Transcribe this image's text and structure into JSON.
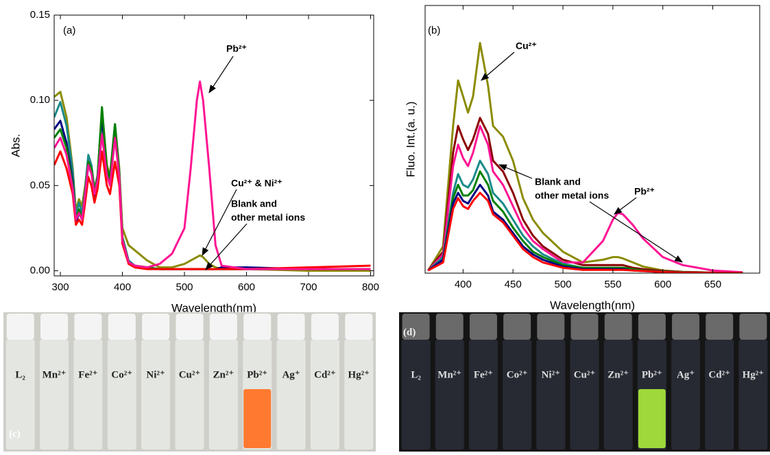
{
  "chart_data": [
    {
      "type": "line",
      "x_label": "Wavelength(nm)",
      "y_label": "Abs.",
      "annotations": [
        "(a)",
        "Pb²⁺",
        "Cu²⁺ & Ni²⁺",
        "Blank and",
        "other metal ions"
      ],
      "xlim": [
        290,
        805
      ],
      "ylim": [
        -0.003,
        0.15
      ],
      "xticks": [
        300,
        400,
        500,
        600,
        700,
        800
      ],
      "yticks": [
        {
          "value": 0,
          "label": "0.00"
        },
        0.05,
        {
          "value": 0.1,
          "label": "0.10"
        },
        0.15
      ],
      "x": [
        290,
        300,
        310,
        320,
        325,
        330,
        335,
        340,
        345,
        350,
        355,
        360,
        367,
        375,
        380,
        388,
        395,
        400,
        410,
        420,
        440,
        460,
        480,
        500,
        510,
        520,
        525,
        530,
        540,
        550,
        560,
        600,
        700,
        800
      ],
      "series": [
        {
          "color": "#8b8b00",
          "values": [
            0.102,
            0.105,
            0.09,
            0.06,
            0.035,
            0.042,
            0.038,
            0.05,
            0.066,
            0.062,
            0.048,
            0.056,
            0.094,
            0.062,
            0.056,
            0.086,
            0.06,
            0.025,
            0.015,
            0.012,
            0.006,
            0.002,
            0.002,
            0.004,
            0.006,
            0.008,
            0.009,
            0.008,
            0.004,
            0.002,
            0.001,
            0.001,
            0,
            0
          ]
        },
        {
          "color": "#1a8a8a",
          "values": [
            0.09,
            0.099,
            0.085,
            0.058,
            0.032,
            0.04,
            0.034,
            0.048,
            0.068,
            0.062,
            0.047,
            0.056,
            0.092,
            0.06,
            0.055,
            0.086,
            0.058,
            0.02,
            0.006,
            0.003,
            0.002,
            0.001,
            0.001,
            0.001,
            0.001,
            0.001,
            0.001,
            0.001,
            0.001,
            0.001,
            0.001,
            0.001,
            0.001,
            0.001
          ]
        },
        {
          "color": "#000080",
          "values": [
            0.083,
            0.088,
            0.075,
            0.052,
            0.028,
            0.034,
            0.03,
            0.045,
            0.062,
            0.058,
            0.044,
            0.054,
            0.09,
            0.058,
            0.053,
            0.085,
            0.055,
            0.018,
            0.005,
            0.003,
            0.002,
            0.001,
            0.001,
            0.001,
            0.001,
            0.001,
            0.001,
            0.001,
            0.001,
            0.001,
            0.002,
            0.002,
            0.001,
            0.001
          ]
        },
        {
          "color": "#008000",
          "values": [
            0.078,
            0.083,
            0.072,
            0.05,
            0.03,
            0.036,
            0.031,
            0.046,
            0.064,
            0.06,
            0.046,
            0.055,
            0.096,
            0.06,
            0.054,
            0.086,
            0.056,
            0.019,
            0.005,
            0.003,
            0.002,
            0.001,
            0.001,
            0.001,
            0.001,
            0.001,
            0.001,
            0.001,
            0.001,
            0.001,
            0.001,
            0.001,
            0.001,
            0.001
          ]
        },
        {
          "color": "#ff0000",
          "values": [
            0.062,
            0.07,
            0.06,
            0.045,
            0.027,
            0.03,
            0.027,
            0.04,
            0.055,
            0.05,
            0.04,
            0.048,
            0.07,
            0.05,
            0.045,
            0.064,
            0.05,
            0.016,
            0.004,
            0.002,
            0.001,
            0.001,
            0.001,
            0.001,
            0.001,
            0.001,
            0.001,
            0.001,
            0.001,
            0.001,
            0.001,
            0.001,
            0.002,
            0.003
          ]
        },
        {
          "color": "#ff1493",
          "values": [
            0.072,
            0.078,
            0.068,
            0.048,
            0.03,
            0.034,
            0.03,
            0.045,
            0.062,
            0.057,
            0.045,
            0.053,
            0.08,
            0.056,
            0.05,
            0.078,
            0.055,
            0.018,
            0.005,
            0.003,
            0.002,
            0.004,
            0.01,
            0.025,
            0.06,
            0.1,
            0.111,
            0.1,
            0.06,
            0.015,
            0.003,
            0.001,
            0.001,
            0.001
          ]
        }
      ]
    },
    {
      "type": "line",
      "x_label": "Wavelength(nm)",
      "y_label": "Fluo. Int.(a. u.)",
      "annotations": [
        "(b)",
        "Cu²⁺",
        "Blank and",
        "other metal ions",
        "Pb²⁺"
      ],
      "xlim": [
        362,
        697
      ],
      "ylim": [
        0,
        100
      ],
      "xticks": [
        400,
        450,
        500,
        550,
        600,
        650
      ],
      "x": [
        365,
        380,
        390,
        395,
        400,
        405,
        410,
        417,
        425,
        430,
        440,
        450,
        460,
        470,
        480,
        500,
        520,
        540,
        550,
        555,
        560,
        570,
        580,
        600,
        620,
        650,
        680
      ],
      "series": [
        {
          "color": "#8b8b00",
          "values": [
            1,
            10,
            55,
            72,
            66,
            60,
            66,
            86,
            70,
            55,
            51,
            42,
            28,
            20,
            15,
            8,
            4,
            5,
            6,
            6,
            5.5,
            4,
            2.5,
            1,
            0.5,
            0.2,
            0.1
          ]
        },
        {
          "color": "#8b0000",
          "values": [
            1,
            8,
            45,
            55,
            50,
            46,
            50,
            58,
            52,
            42,
            38,
            30,
            20,
            14,
            10,
            5,
            3,
            3,
            3,
            3,
            3,
            2,
            1.5,
            0.8,
            0.4,
            0.2,
            0.1
          ]
        },
        {
          "color": "#ff1493",
          "values": [
            1,
            7,
            40,
            48,
            43,
            40,
            45,
            55,
            48,
            38,
            33,
            25,
            17,
            12,
            9,
            4,
            4,
            12,
            20,
            22.5,
            22,
            18,
            13,
            6,
            3,
            1,
            0.3
          ]
        },
        {
          "color": "#1a8a8a",
          "values": [
            1,
            6,
            30,
            37,
            33,
            32,
            35,
            42,
            37,
            30,
            26,
            20,
            14,
            10,
            7,
            3.5,
            2,
            2,
            2,
            2,
            2,
            1.5,
            1,
            0.6,
            0.3,
            0.1,
            0.1
          ]
        },
        {
          "color": "#008000",
          "values": [
            1,
            5,
            28,
            33,
            29,
            29,
            31,
            38,
            33,
            27,
            23,
            17,
            12,
            8,
            6,
            3,
            2,
            2,
            2,
            2,
            2,
            1.5,
            1,
            0.5,
            0.3,
            0.1,
            0.1
          ]
        },
        {
          "color": "#000080",
          "values": [
            1,
            5,
            26,
            30,
            27,
            26,
            29,
            33,
            29,
            23,
            20,
            15,
            10,
            7,
            5,
            2.5,
            1.5,
            1.5,
            1.5,
            1.5,
            1.5,
            1,
            0.8,
            0.4,
            0.2,
            0.1,
            0.1
          ]
        },
        {
          "color": "#ff0000",
          "values": [
            1,
            4,
            24,
            28,
            25,
            24,
            27,
            30,
            27,
            22,
            19,
            14,
            9,
            6,
            4,
            2,
            1.2,
            1.2,
            1.2,
            1.2,
            1.2,
            1,
            0.8,
            0.4,
            0.2,
            0.1,
            0.1
          ]
        }
      ]
    }
  ],
  "photos": [
    {
      "label": "(c)",
      "vials": [
        "L₂",
        "Mn²⁺",
        "Fe²⁺",
        "Co²⁺",
        "Ni²⁺",
        "Cu²⁺",
        "Zn²⁺",
        "Pb²⁺",
        "Ag⁺",
        "Cd²⁺",
        "Hg²⁺"
      ]
    },
    {
      "label": "(d)",
      "vials": [
        "L₂",
        "Mn²⁺",
        "Fe²⁺",
        "Co²⁺",
        "Ni²⁺",
        "Cu²⁺",
        "Zn²⁺",
        "Pb²⁺",
        "Ag⁺",
        "Cd²⁺",
        "Hg²⁺"
      ]
    }
  ]
}
